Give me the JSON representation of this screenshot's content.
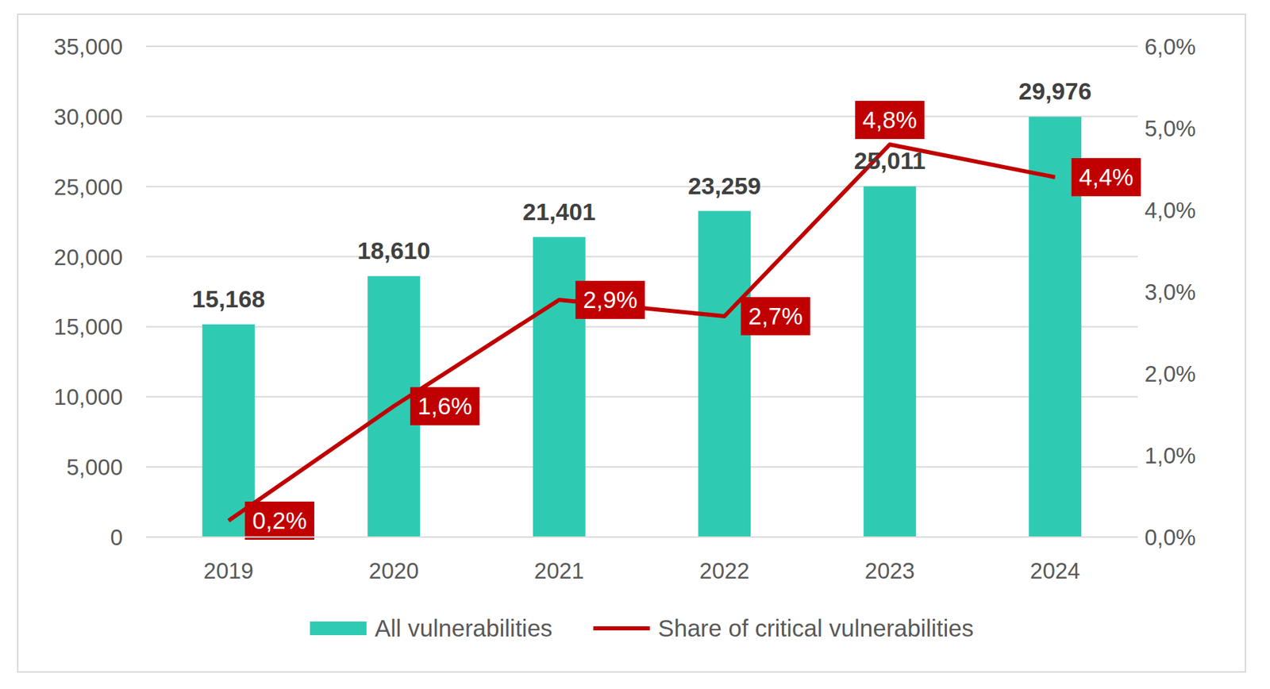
{
  "chart_data": {
    "type": "bar",
    "categories": [
      "2019",
      "2020",
      "2021",
      "2022",
      "2023",
      "2024"
    ],
    "series": [
      {
        "name": "All vulnerabilities",
        "type": "bar",
        "color": "#2ECBB2",
        "values": [
          15168,
          18610,
          21401,
          23259,
          25011,
          29976
        ],
        "value_labels": [
          "15,168",
          "18,610",
          "21,401",
          "23,259",
          "25,011",
          "29,976"
        ]
      },
      {
        "name": "Share of critical vulnerabilities",
        "type": "line",
        "axis": "y2",
        "color": "#C00000",
        "values": [
          0.2,
          1.6,
          2.9,
          2.7,
          4.8,
          4.4
        ],
        "value_labels": [
          "0,2%",
          "1,6%",
          "2,9%",
          "2,7%",
          "4,8%",
          "4,4%"
        ]
      }
    ],
    "ylim": [
      0,
      35000
    ],
    "yticks": [
      0,
      {
        "value": 5000,
        "label": "5,000"
      },
      {
        "value": 10000,
        "label": "10,000"
      },
      {
        "value": 15000,
        "label": "15,000"
      },
      {
        "value": 20000,
        "label": "20,000"
      },
      {
        "value": 25000,
        "label": "25,000"
      },
      {
        "value": 30000,
        "label": "30,000"
      },
      {
        "value": 35000,
        "label": "35,000"
      }
    ],
    "y2lim": [
      0,
      6
    ],
    "y2ticks": [
      {
        "value": 0,
        "label": "0,0%"
      },
      {
        "value": 1,
        "label": "1,0%"
      },
      {
        "value": 2,
        "label": "2,0%"
      },
      {
        "value": 3,
        "label": "3,0%"
      },
      {
        "value": 4,
        "label": "4,0%"
      },
      {
        "value": 5,
        "label": "5,0%"
      },
      {
        "value": 6,
        "label": "6,0%"
      }
    ],
    "grid": true,
    "legend": "bottom",
    "data_labels": true
  }
}
